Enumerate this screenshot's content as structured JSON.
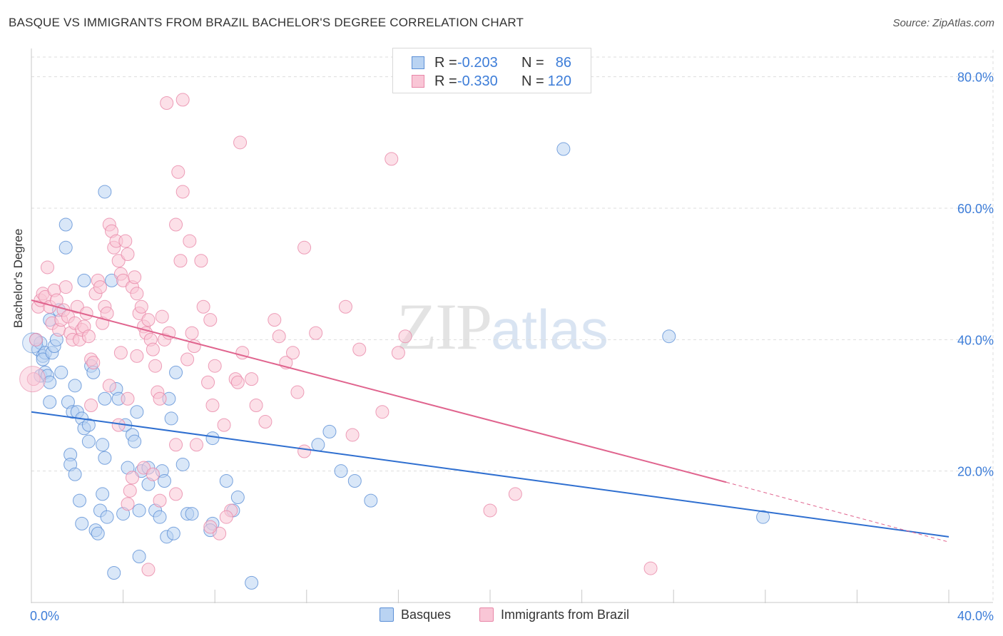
{
  "title": "BASQUE VS IMMIGRANTS FROM BRAZIL BACHELOR'S DEGREE CORRELATION CHART",
  "source": "Source: ZipAtlas.com",
  "watermark": {
    "zip": "ZIP",
    "atlas": "atlas"
  },
  "legend_stats": {
    "r_label": "R =",
    "n_label": "N =",
    "rows": [
      {
        "series": "Basques",
        "r": "-0.203",
        "n": "86"
      },
      {
        "series": "Immigrants from Brazil",
        "r": "-0.330",
        "n": "120"
      }
    ]
  },
  "colors": {
    "basques_fill": "#b9d3f2",
    "basques_stroke": "#5b8fd6",
    "basques_line": "#2f6fd0",
    "brazil_fill": "#f9c6d6",
    "brazil_stroke": "#e887a8",
    "brazil_line": "#e0648e",
    "grid": "#dddddd",
    "axis_label": "#3d7dd8"
  },
  "chart_data": {
    "type": "scatter",
    "title": "BASQUE VS IMMIGRANTS FROM BRAZIL BACHELOR'S DEGREE CORRELATION CHART",
    "xlabel": "",
    "ylabel": "Bachelor's Degree",
    "xlim": [
      0,
      40
    ],
    "ylim": [
      0,
      83
    ],
    "x_ticks": [
      0,
      4,
      8,
      12,
      16,
      20,
      24,
      28,
      32,
      36,
      40
    ],
    "x_tick_labels": [
      {
        "value": 0,
        "label": "0.0%"
      },
      {
        "value": 40,
        "label": "40.0%"
      }
    ],
    "y_ticks": [
      {
        "value": 20,
        "label": "20.0%"
      },
      {
        "value": 40,
        "label": "40.0%"
      },
      {
        "value": 60,
        "label": "60.0%"
      },
      {
        "value": 80,
        "label": "80.0%"
      }
    ],
    "legend": [
      "Basques",
      "Immigrants from Brazil"
    ],
    "series": [
      {
        "name": "Basques",
        "trend": {
          "x0": 0,
          "y0": 29,
          "x1": 40,
          "y1": 10
        },
        "points": [
          [
            0.2,
            40
          ],
          [
            0.3,
            38.5
          ],
          [
            0.4,
            39.5
          ],
          [
            0.5,
            37.5
          ],
          [
            0.6,
            38
          ],
          [
            0.5,
            37
          ],
          [
            0.4,
            34.5
          ],
          [
            0.6,
            35
          ],
          [
            0.7,
            34.5
          ],
          [
            0.8,
            33.5
          ],
          [
            0.9,
            38
          ],
          [
            1.0,
            39
          ],
          [
            0.8,
            30.5
          ],
          [
            1.1,
            40
          ],
          [
            1.2,
            44.5
          ],
          [
            1.5,
            57.5
          ],
          [
            1.5,
            54
          ],
          [
            0.8,
            43
          ],
          [
            1.6,
            30.5
          ],
          [
            1.3,
            35
          ],
          [
            1.9,
            33
          ],
          [
            1.8,
            29
          ],
          [
            2.0,
            29
          ],
          [
            2.2,
            28
          ],
          [
            2.3,
            26.5
          ],
          [
            2.5,
            27
          ],
          [
            2.5,
            24.5
          ],
          [
            1.7,
            22.5
          ],
          [
            1.7,
            21
          ],
          [
            1.9,
            19.5
          ],
          [
            2.3,
            49
          ],
          [
            2.6,
            36
          ],
          [
            2.7,
            35
          ],
          [
            3.1,
            24
          ],
          [
            3.2,
            22
          ],
          [
            2.1,
            15.5
          ],
          [
            2.2,
            12
          ],
          [
            2.8,
            11
          ],
          [
            2.9,
            10.5
          ],
          [
            3.1,
            16.5
          ],
          [
            3.0,
            14
          ],
          [
            3.3,
            13
          ],
          [
            3.2,
            31
          ],
          [
            3.5,
            49
          ],
          [
            3.7,
            32.5
          ],
          [
            3.8,
            31
          ],
          [
            4.1,
            27
          ],
          [
            4.4,
            25.5
          ],
          [
            4.5,
            24.5
          ],
          [
            4.2,
            20.5
          ],
          [
            4.6,
            29
          ],
          [
            4.8,
            20
          ],
          [
            5.1,
            20.5
          ],
          [
            5.1,
            18
          ],
          [
            5.7,
            20
          ],
          [
            5.8,
            18.5
          ],
          [
            6.0,
            31
          ],
          [
            6.1,
            28
          ],
          [
            6.3,
            35
          ],
          [
            6.6,
            21
          ],
          [
            6.8,
            13.5
          ],
          [
            7.0,
            13.5
          ],
          [
            7.9,
            25
          ],
          [
            8.5,
            18.5
          ],
          [
            8.8,
            14
          ],
          [
            9.0,
            16
          ],
          [
            7.9,
            12
          ],
          [
            7.8,
            11
          ],
          [
            4.0,
            13.5
          ],
          [
            4.7,
            14
          ],
          [
            5.4,
            14
          ],
          [
            5.6,
            13
          ],
          [
            5.9,
            10
          ],
          [
            6.2,
            10.5
          ],
          [
            4.7,
            7
          ],
          [
            3.6,
            4.5
          ],
          [
            3.2,
            62.5
          ],
          [
            9.6,
            3
          ],
          [
            13.5,
            20
          ],
          [
            14.1,
            18.5
          ],
          [
            12.5,
            24
          ],
          [
            13.0,
            26
          ],
          [
            14.8,
            15.5
          ],
          [
            23.2,
            69
          ],
          [
            27.8,
            40.5
          ],
          [
            31.9,
            13
          ]
        ]
      },
      {
        "name": "Immigrants from Brazil",
        "trend": {
          "x0": 0,
          "y0": 46,
          "x1": 30.3,
          "y1": 18.3
        },
        "trend_dashed": {
          "x0": 30.3,
          "y0": 18.3,
          "x1": 40,
          "y1": 9.2
        },
        "points": [
          [
            0.1,
            34
          ],
          [
            0.2,
            40
          ],
          [
            0.3,
            45
          ],
          [
            0.4,
            46
          ],
          [
            0.5,
            47
          ],
          [
            0.6,
            46.5
          ],
          [
            0.7,
            51
          ],
          [
            0.8,
            45
          ],
          [
            0.9,
            42.5
          ],
          [
            1.0,
            47.5
          ],
          [
            1.1,
            46
          ],
          [
            1.2,
            41.5
          ],
          [
            1.3,
            43
          ],
          [
            1.4,
            44.5
          ],
          [
            1.5,
            48
          ],
          [
            1.6,
            43.5
          ],
          [
            1.7,
            41
          ],
          [
            1.8,
            40
          ],
          [
            1.9,
            42.5
          ],
          [
            2.0,
            45
          ],
          [
            2.1,
            40
          ],
          [
            2.2,
            41.5
          ],
          [
            2.3,
            42
          ],
          [
            2.4,
            44
          ],
          [
            2.5,
            40.5
          ],
          [
            2.6,
            37
          ],
          [
            2.7,
            36.5
          ],
          [
            2.8,
            47
          ],
          [
            2.9,
            49
          ],
          [
            3.0,
            48
          ],
          [
            3.1,
            42.5
          ],
          [
            3.2,
            45
          ],
          [
            3.3,
            44
          ],
          [
            3.4,
            57.5
          ],
          [
            3.5,
            56.5
          ],
          [
            3.6,
            54
          ],
          [
            3.7,
            55
          ],
          [
            3.8,
            52
          ],
          [
            3.9,
            50
          ],
          [
            4.0,
            49
          ],
          [
            4.1,
            55
          ],
          [
            4.2,
            53
          ],
          [
            4.4,
            48
          ],
          [
            4.5,
            49.5
          ],
          [
            4.6,
            47
          ],
          [
            4.7,
            44
          ],
          [
            4.8,
            45
          ],
          [
            4.9,
            42
          ],
          [
            5.0,
            41
          ],
          [
            5.1,
            43
          ],
          [
            5.2,
            40
          ],
          [
            5.3,
            38.5
          ],
          [
            5.4,
            36
          ],
          [
            5.5,
            32
          ],
          [
            5.6,
            31
          ],
          [
            5.8,
            40
          ],
          [
            5.9,
            76
          ],
          [
            6.6,
            76.5
          ],
          [
            6.4,
            65.5
          ],
          [
            6.6,
            62.5
          ],
          [
            6.3,
            57.5
          ],
          [
            6.5,
            52
          ],
          [
            6.9,
            55
          ],
          [
            7.4,
            52
          ],
          [
            7.5,
            45
          ],
          [
            7.8,
            43
          ],
          [
            7.0,
            41
          ],
          [
            7.1,
            39
          ],
          [
            8.0,
            36
          ],
          [
            7.7,
            33.5
          ],
          [
            7.9,
            30
          ],
          [
            8.4,
            27
          ],
          [
            8.9,
            34
          ],
          [
            9.1,
            70
          ],
          [
            9.2,
            38
          ],
          [
            9.6,
            34
          ],
          [
            9.0,
            33.5
          ],
          [
            10.2,
            27.5
          ],
          [
            10.6,
            43
          ],
          [
            10.8,
            40.5
          ],
          [
            11.1,
            36.5
          ],
          [
            11.4,
            38
          ],
          [
            11.6,
            32
          ],
          [
            11.9,
            23
          ],
          [
            11.9,
            54
          ],
          [
            12.4,
            41
          ],
          [
            13.7,
            45
          ],
          [
            14.3,
            38.5
          ],
          [
            15.3,
            29
          ],
          [
            16.3,
            40.5
          ],
          [
            16.0,
            38
          ],
          [
            15.7,
            67.5
          ],
          [
            14.0,
            25.5
          ],
          [
            2.6,
            30
          ],
          [
            3.4,
            33
          ],
          [
            3.9,
            38
          ],
          [
            4.2,
            31
          ],
          [
            3.8,
            27
          ],
          [
            4.4,
            19
          ],
          [
            4.9,
            20.5
          ],
          [
            5.3,
            19.5
          ],
          [
            6.3,
            24
          ],
          [
            7.2,
            24
          ],
          [
            6.3,
            16.5
          ],
          [
            5.6,
            15.5
          ],
          [
            8.7,
            14
          ],
          [
            8.5,
            13
          ],
          [
            8.2,
            10.5
          ],
          [
            7.8,
            11.5
          ],
          [
            5.1,
            5
          ],
          [
            4.2,
            15
          ],
          [
            4.3,
            17
          ],
          [
            4.6,
            37.5
          ],
          [
            5.7,
            43.5
          ],
          [
            6.0,
            41
          ],
          [
            6.8,
            37
          ],
          [
            9.8,
            30
          ],
          [
            20.0,
            14
          ],
          [
            21.1,
            16.5
          ],
          [
            27.0,
            5.2
          ]
        ]
      }
    ]
  }
}
